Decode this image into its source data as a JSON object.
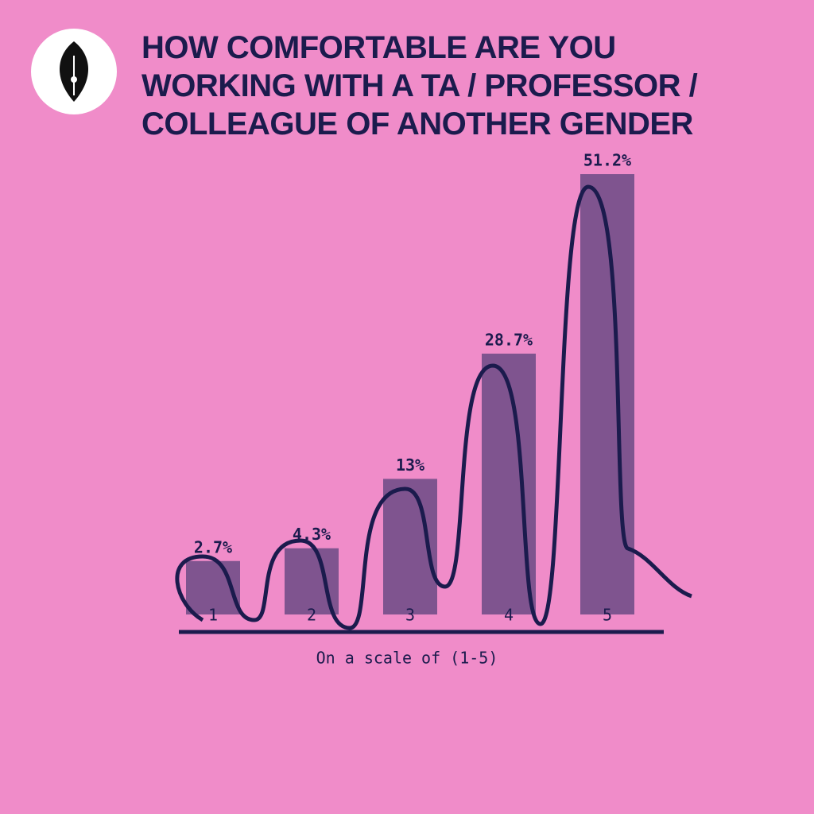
{
  "chart_data": {
    "type": "bar",
    "title": "HOW COMFORTABLE ARE YOU WORKING WITH A TA / PROFESSOR / COLLEAGUE OF ANOTHER GENDER",
    "x_label": "On a scale of (1-5)",
    "categories": [
      "1",
      "2",
      "3",
      "4",
      "5"
    ],
    "values": [
      2.7,
      4.3,
      13,
      28.7,
      51.2
    ],
    "value_labels": [
      "2.7%",
      "4.3%",
      "13%",
      "28.7%",
      "51.2%"
    ],
    "color": "#6b4a85",
    "ylim": [
      -4,
      52.5
    ]
  }
}
